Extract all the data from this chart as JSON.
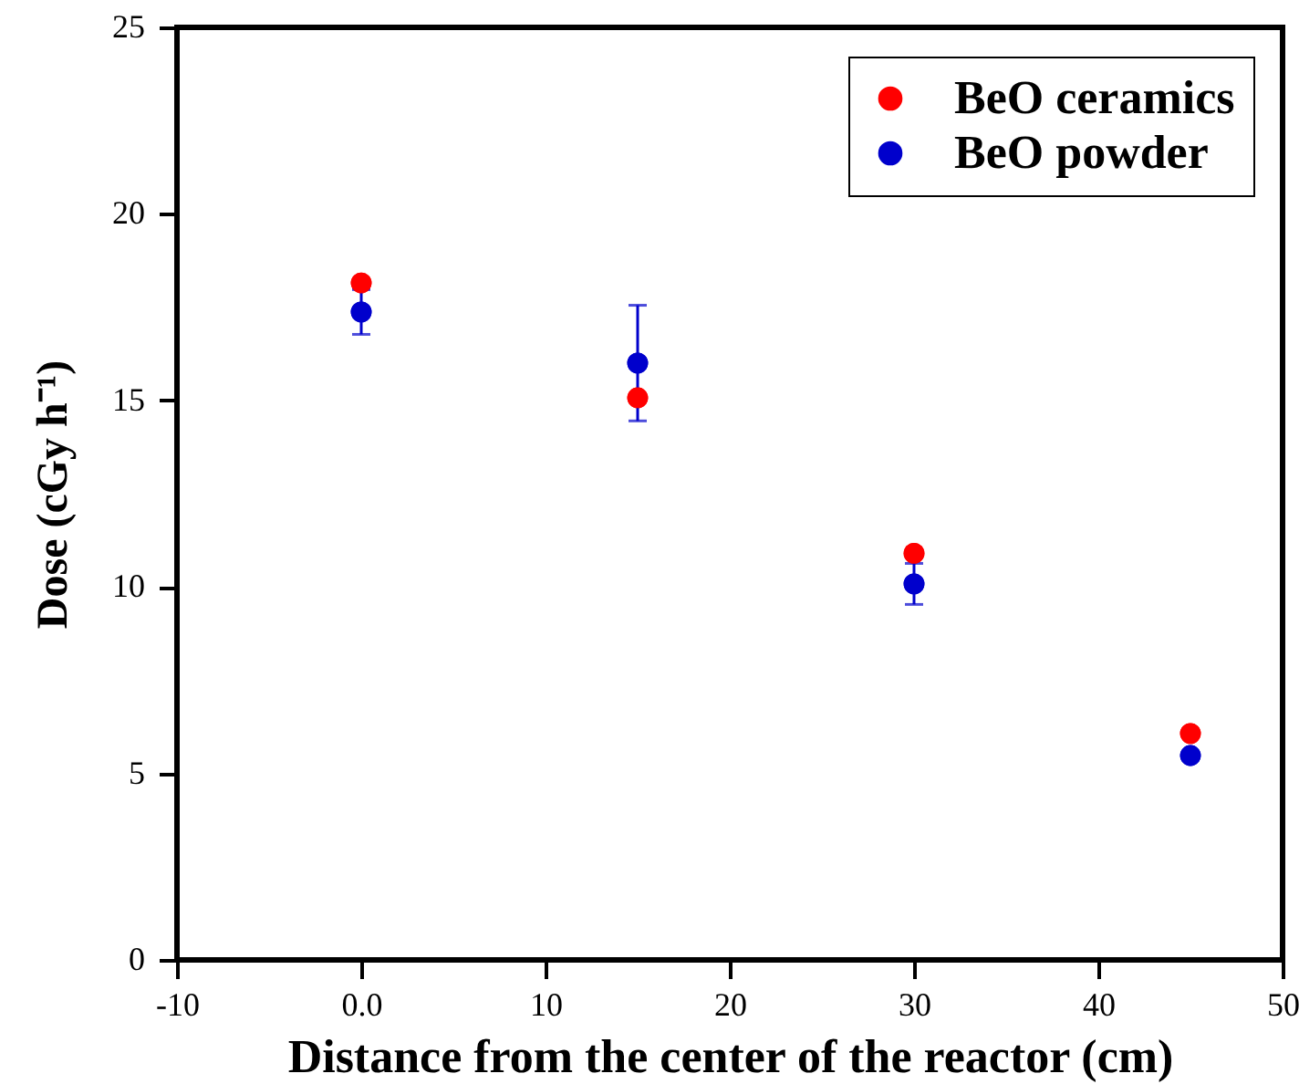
{
  "chart_data": {
    "type": "scatter",
    "xlabel": "Distance from the center of the reactor (cm)",
    "ylabel": "Dose (cGy h⁻¹)",
    "x": [
      0,
      15,
      30,
      45
    ],
    "series": [
      {
        "name": "BeO ceramics",
        "color": "#ff0000",
        "values": [
          18.15,
          15.07,
          10.9,
          6.07
        ]
      },
      {
        "name": "BeO powder",
        "color": "#0000cc",
        "values": [
          17.37,
          16.0,
          10.08,
          5.48
        ],
        "errors": [
          0.6,
          1.55,
          0.55,
          null
        ]
      }
    ],
    "xlim": [
      -10,
      50
    ],
    "xticks": [
      -10,
      {
        "value": 0,
        "label": "0.0"
      },
      10,
      20,
      30,
      40,
      50
    ],
    "ylim": [
      0,
      25
    ],
    "yticks": [
      0,
      5,
      10,
      15,
      20,
      25
    ],
    "grid": false,
    "legend": "top right",
    "marker": "circle"
  }
}
